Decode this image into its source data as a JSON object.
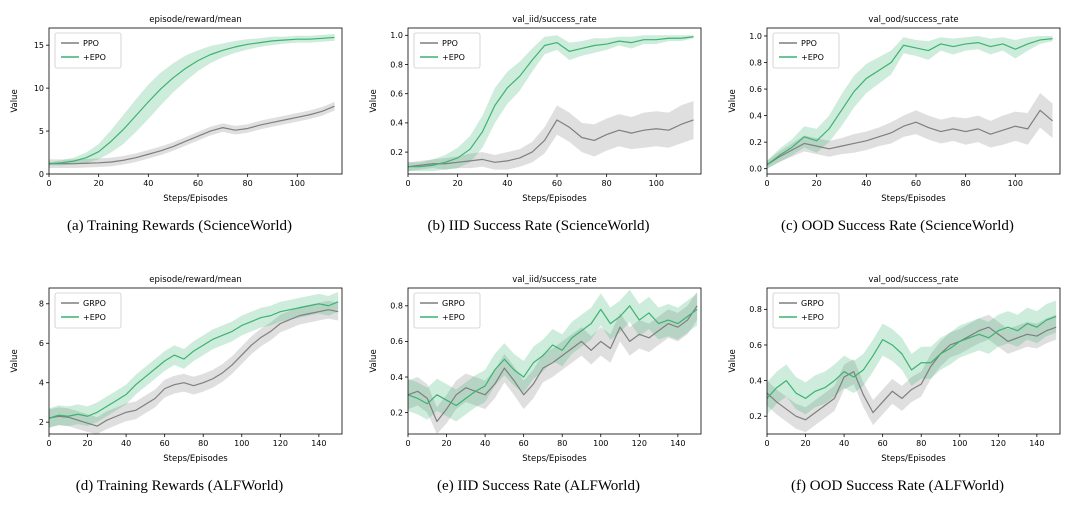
{
  "figure_background": "#ffffff",
  "colors": {
    "baseline_gray": "#7f7f7f",
    "epo_green": "#3cb371",
    "spine": "#000000",
    "legend_border": "#cccccc"
  },
  "chart_data": [
    {
      "type": "line",
      "caption_tag": "(a)",
      "caption_text": "Training Rewards (ScienceWorld)",
      "title": "episode/reward/mean",
      "xlabel": "Steps/Episodes",
      "ylabel": "Value",
      "xlim": [
        0,
        118
      ],
      "ylim": [
        0,
        17
      ],
      "xticks": [
        0,
        20,
        40,
        60,
        80,
        100
      ],
      "xtick_labels": [
        "0",
        "20",
        "40",
        "60",
        "80",
        "100"
      ],
      "yticks": [
        0,
        5,
        10,
        15
      ],
      "ytick_labels": [
        "0",
        "5",
        "10",
        "15"
      ],
      "legend_position": "upper-left",
      "grid": false,
      "x": [
        0,
        5,
        10,
        15,
        20,
        25,
        30,
        35,
        40,
        45,
        50,
        55,
        60,
        65,
        70,
        75,
        80,
        85,
        90,
        95,
        100,
        105,
        110,
        115
      ],
      "series": [
        {
          "name": "PPO",
          "color": "#7f7f7f",
          "y": [
            1.2,
            1.2,
            1.2,
            1.25,
            1.3,
            1.4,
            1.6,
            1.9,
            2.3,
            2.7,
            3.2,
            3.8,
            4.4,
            5.0,
            5.4,
            5.1,
            5.3,
            5.7,
            6.0,
            6.3,
            6.6,
            6.9,
            7.3,
            7.9
          ],
          "band": 0.5
        },
        {
          "name": "+EPO",
          "color": "#3cb371",
          "y": [
            1.2,
            1.3,
            1.5,
            1.9,
            2.6,
            3.8,
            5.2,
            6.8,
            8.4,
            9.9,
            11.2,
            12.3,
            13.2,
            13.9,
            14.4,
            14.8,
            15.1,
            15.3,
            15.5,
            15.6,
            15.7,
            15.7,
            15.8,
            15.9
          ],
          "band": [
            0.2,
            0.3,
            0.4,
            0.6,
            0.9,
            1.3,
            1.7,
            1.9,
            2.0,
            1.9,
            1.7,
            1.5,
            1.2,
            1.0,
            0.8,
            0.7,
            0.6,
            0.5,
            0.5,
            0.4,
            0.4,
            0.4,
            0.4,
            0.4
          ]
        }
      ]
    },
    {
      "type": "line",
      "caption_tag": "(b)",
      "caption_text": "IID Success Rate (ScienceWorld)",
      "title": "val_iid/success_rate",
      "xlabel": "Steps/Episodes",
      "ylabel": "Value",
      "xlim": [
        0,
        118
      ],
      "ylim": [
        0.05,
        1.05
      ],
      "xticks": [
        0,
        20,
        40,
        60,
        80,
        100
      ],
      "xtick_labels": [
        "0",
        "20",
        "40",
        "60",
        "80",
        "100"
      ],
      "yticks": [
        0.2,
        0.4,
        0.6,
        0.8,
        1.0
      ],
      "ytick_labels": [
        "0.2",
        "0.4",
        "0.6",
        "0.8",
        "1.0"
      ],
      "legend_position": "upper-left",
      "grid": false,
      "x": [
        0,
        5,
        10,
        15,
        20,
        25,
        30,
        35,
        40,
        45,
        50,
        55,
        60,
        65,
        70,
        75,
        80,
        85,
        90,
        95,
        100,
        105,
        110,
        115
      ],
      "series": [
        {
          "name": "PPO",
          "color": "#7f7f7f",
          "y": [
            0.1,
            0.11,
            0.12,
            0.12,
            0.13,
            0.14,
            0.15,
            0.13,
            0.14,
            0.16,
            0.2,
            0.28,
            0.42,
            0.37,
            0.3,
            0.28,
            0.32,
            0.35,
            0.33,
            0.35,
            0.36,
            0.35,
            0.39,
            0.42
          ],
          "band": [
            0.03,
            0.03,
            0.03,
            0.04,
            0.04,
            0.05,
            0.05,
            0.05,
            0.06,
            0.06,
            0.07,
            0.09,
            0.1,
            0.1,
            0.1,
            0.11,
            0.11,
            0.11,
            0.11,
            0.12,
            0.12,
            0.12,
            0.13,
            0.13
          ]
        },
        {
          "name": "+EPO",
          "color": "#3cb371",
          "y": [
            0.1,
            0.1,
            0.11,
            0.13,
            0.16,
            0.22,
            0.34,
            0.52,
            0.64,
            0.72,
            0.83,
            0.93,
            0.95,
            0.89,
            0.91,
            0.93,
            0.94,
            0.96,
            0.95,
            0.97,
            0.97,
            0.98,
            0.98,
            0.99
          ],
          "band": [
            0.03,
            0.03,
            0.04,
            0.05,
            0.07,
            0.09,
            0.11,
            0.12,
            0.11,
            0.1,
            0.08,
            0.06,
            0.05,
            0.06,
            0.05,
            0.05,
            0.04,
            0.03,
            0.04,
            0.03,
            0.03,
            0.02,
            0.02,
            0.01
          ]
        }
      ]
    },
    {
      "type": "line",
      "caption_tag": "(c)",
      "caption_text": "OOD Success Rate (ScienceWorld)",
      "title": "val_ood/success_rate",
      "xlabel": "Steps/Episodes",
      "ylabel": "Value",
      "xlim": [
        0,
        118
      ],
      "ylim": [
        -0.04,
        1.06
      ],
      "xticks": [
        0,
        20,
        40,
        60,
        80,
        100
      ],
      "xtick_labels": [
        "0",
        "20",
        "40",
        "60",
        "80",
        "100"
      ],
      "yticks": [
        0.0,
        0.2,
        0.4,
        0.6,
        0.8,
        1.0
      ],
      "ytick_labels": [
        "0.0",
        "0.2",
        "0.4",
        "0.6",
        "0.8",
        "1.0"
      ],
      "legend_position": "upper-left",
      "grid": false,
      "x": [
        0,
        5,
        10,
        15,
        20,
        25,
        30,
        35,
        40,
        45,
        50,
        55,
        60,
        65,
        70,
        75,
        80,
        85,
        90,
        95,
        100,
        105,
        110,
        115
      ],
      "series": [
        {
          "name": "PPO",
          "color": "#7f7f7f",
          "y": [
            0.03,
            0.09,
            0.14,
            0.19,
            0.17,
            0.15,
            0.17,
            0.19,
            0.21,
            0.24,
            0.27,
            0.32,
            0.35,
            0.31,
            0.28,
            0.3,
            0.28,
            0.3,
            0.26,
            0.29,
            0.32,
            0.3,
            0.44,
            0.36
          ],
          "band": [
            0.03,
            0.04,
            0.05,
            0.06,
            0.06,
            0.06,
            0.06,
            0.07,
            0.07,
            0.07,
            0.08,
            0.08,
            0.09,
            0.09,
            0.09,
            0.09,
            0.1,
            0.1,
            0.1,
            0.11,
            0.11,
            0.12,
            0.13,
            0.13
          ]
        },
        {
          "name": "+EPO",
          "color": "#3cb371",
          "y": [
            0.03,
            0.1,
            0.16,
            0.24,
            0.21,
            0.3,
            0.44,
            0.58,
            0.68,
            0.74,
            0.8,
            0.93,
            0.91,
            0.89,
            0.94,
            0.92,
            0.94,
            0.95,
            0.92,
            0.94,
            0.9,
            0.94,
            0.97,
            0.98
          ],
          "band": [
            0.03,
            0.05,
            0.06,
            0.08,
            0.09,
            0.1,
            0.12,
            0.12,
            0.11,
            0.1,
            0.09,
            0.06,
            0.06,
            0.07,
            0.05,
            0.06,
            0.05,
            0.05,
            0.06,
            0.05,
            0.07,
            0.05,
            0.03,
            0.02
          ]
        }
      ]
    },
    {
      "type": "line",
      "caption_tag": "(d)",
      "caption_text": "Training Rewards (ALFWorld)",
      "title": "episode/reward/mean",
      "xlabel": "Steps/Episodes",
      "ylabel": "Value",
      "xlim": [
        0,
        152
      ],
      "ylim": [
        1.4,
        8.8
      ],
      "xticks": [
        0,
        20,
        40,
        60,
        80,
        100,
        120,
        140
      ],
      "xtick_labels": [
        "0",
        "20",
        "40",
        "60",
        "80",
        "100",
        "120",
        "140"
      ],
      "yticks": [
        2,
        4,
        6,
        8
      ],
      "ytick_labels": [
        "2",
        "4",
        "6",
        "8"
      ],
      "legend_position": "upper-left",
      "grid": false,
      "x": [
        0,
        5,
        10,
        15,
        20,
        25,
        30,
        35,
        40,
        45,
        50,
        55,
        60,
        65,
        70,
        75,
        80,
        85,
        90,
        95,
        100,
        105,
        110,
        115,
        120,
        125,
        130,
        135,
        140,
        145,
        150
      ],
      "series": [
        {
          "name": "GRPO",
          "color": "#7f7f7f",
          "y": [
            2.2,
            2.3,
            2.25,
            2.1,
            1.95,
            1.8,
            2.1,
            2.3,
            2.5,
            2.6,
            2.9,
            3.2,
            3.7,
            3.9,
            4.0,
            3.85,
            4.0,
            4.2,
            4.5,
            4.9,
            5.4,
            5.9,
            6.3,
            6.6,
            7.0,
            7.2,
            7.4,
            7.5,
            7.6,
            7.7,
            7.6
          ],
          "band": 0.45
        },
        {
          "name": "+EPO",
          "color": "#3cb371",
          "y": [
            2.2,
            2.35,
            2.3,
            2.4,
            2.3,
            2.5,
            2.8,
            3.1,
            3.4,
            3.9,
            4.3,
            4.7,
            5.1,
            5.4,
            5.2,
            5.6,
            5.9,
            6.2,
            6.4,
            6.6,
            6.9,
            7.1,
            7.3,
            7.4,
            7.6,
            7.7,
            7.8,
            7.9,
            8.0,
            7.9,
            8.1
          ],
          "band": 0.5
        }
      ]
    },
    {
      "type": "line",
      "caption_tag": "(e)",
      "caption_text": "IID Success Rate (ALFWorld)",
      "title": "val_iid/success_rate",
      "xlabel": "Steps/Episodes",
      "ylabel": "Value",
      "xlim": [
        0,
        152
      ],
      "ylim": [
        0.08,
        0.9
      ],
      "xticks": [
        0,
        20,
        40,
        60,
        80,
        100,
        120,
        140
      ],
      "xtick_labels": [
        "0",
        "20",
        "40",
        "60",
        "80",
        "100",
        "120",
        "140"
      ],
      "yticks": [
        0.2,
        0.4,
        0.6,
        0.8
      ],
      "ytick_labels": [
        "0.2",
        "0.4",
        "0.6",
        "0.8"
      ],
      "legend_position": "upper-left",
      "grid": false,
      "x": [
        0,
        5,
        10,
        15,
        20,
        25,
        30,
        35,
        40,
        45,
        50,
        55,
        60,
        65,
        70,
        75,
        80,
        85,
        90,
        95,
        100,
        105,
        110,
        115,
        120,
        125,
        130,
        135,
        140,
        145,
        150
      ],
      "series": [
        {
          "name": "GRPO",
          "color": "#7f7f7f",
          "y": [
            0.3,
            0.32,
            0.28,
            0.15,
            0.22,
            0.3,
            0.34,
            0.32,
            0.3,
            0.36,
            0.45,
            0.38,
            0.3,
            0.36,
            0.45,
            0.48,
            0.52,
            0.56,
            0.6,
            0.55,
            0.6,
            0.56,
            0.68,
            0.6,
            0.64,
            0.62,
            0.66,
            0.7,
            0.68,
            0.72,
            0.8
          ],
          "band": 0.08
        },
        {
          "name": "+EPO",
          "color": "#3cb371",
          "y": [
            0.3,
            0.28,
            0.25,
            0.3,
            0.27,
            0.24,
            0.28,
            0.32,
            0.35,
            0.44,
            0.5,
            0.44,
            0.4,
            0.48,
            0.52,
            0.58,
            0.55,
            0.62,
            0.66,
            0.7,
            0.78,
            0.7,
            0.74,
            0.8,
            0.72,
            0.76,
            0.7,
            0.72,
            0.7,
            0.74,
            0.78
          ],
          "band": 0.09
        }
      ]
    },
    {
      "type": "line",
      "caption_tag": "(f)",
      "caption_text": "OOD Success Rate (ALFWorld)",
      "title": "val_ood/success_rate",
      "xlabel": "Steps/Episodes",
      "ylabel": "Value",
      "xlim": [
        0,
        152
      ],
      "ylim": [
        0.1,
        0.92
      ],
      "xticks": [
        0,
        20,
        40,
        60,
        80,
        100,
        120,
        140
      ],
      "xtick_labels": [
        "0",
        "20",
        "40",
        "60",
        "80",
        "100",
        "120",
        "140"
      ],
      "yticks": [
        0.2,
        0.4,
        0.6,
        0.8
      ],
      "ytick_labels": [
        "0.2",
        "0.4",
        "0.6",
        "0.8"
      ],
      "legend_position": "upper-left",
      "grid": false,
      "x": [
        0,
        5,
        10,
        15,
        20,
        25,
        30,
        35,
        40,
        45,
        50,
        55,
        60,
        65,
        70,
        75,
        80,
        85,
        90,
        95,
        100,
        105,
        110,
        115,
        120,
        125,
        130,
        135,
        140,
        145,
        150
      ],
      "series": [
        {
          "name": "GRPO",
          "color": "#7f7f7f",
          "y": [
            0.33,
            0.28,
            0.24,
            0.2,
            0.18,
            0.22,
            0.26,
            0.3,
            0.42,
            0.45,
            0.32,
            0.22,
            0.28,
            0.34,
            0.3,
            0.35,
            0.38,
            0.48,
            0.55,
            0.6,
            0.62,
            0.65,
            0.68,
            0.7,
            0.66,
            0.62,
            0.64,
            0.66,
            0.65,
            0.68,
            0.7
          ],
          "band": 0.07
        },
        {
          "name": "+EPO",
          "color": "#3cb371",
          "y": [
            0.3,
            0.36,
            0.4,
            0.33,
            0.3,
            0.34,
            0.36,
            0.4,
            0.45,
            0.42,
            0.46,
            0.54,
            0.63,
            0.6,
            0.55,
            0.46,
            0.5,
            0.5,
            0.55,
            0.58,
            0.62,
            0.64,
            0.66,
            0.64,
            0.68,
            0.7,
            0.68,
            0.72,
            0.7,
            0.74,
            0.76
          ],
          "band": 0.09
        }
      ]
    }
  ]
}
